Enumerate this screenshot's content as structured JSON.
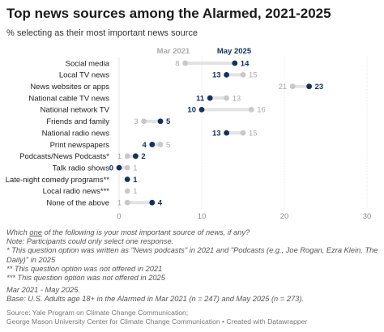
{
  "title": "Top news sources among the Alarmed, 2021-2025",
  "subtitle": "% selecting as their most important news source",
  "legend": {
    "series_a": "Mar 2021",
    "series_b": "May 2025"
  },
  "notes": {
    "question_pre": "Which ",
    "question_u": "one",
    "question_post": " of the following is your most important source of news, if any?",
    "line1": "Note: Participants could only select one response.",
    "line2": "* This question option was written as \"News podcasts\" in 2021 and \"Podcasts (e.g., Joe Rogan, Ezra Klein, The",
    "line3": "Daily)\" in 2025",
    "line4": "** This question option was not offered in 2021",
    "line5": "*** This question option was not offered in 2025"
  },
  "dates": {
    "line1": "Mar 2021 - May 2025.",
    "line2": "Base: U.S. Adults age 18+ in the Alarmed in Mar 2021 (n = 247) and May 2025 (n = 273)."
  },
  "source": {
    "line1": "Source: Yale Program on Climate Change Communication;",
    "line2": "George Mason University Center for Climate Change Communication • Created with Datawrapper"
  },
  "colors": {
    "mar2021": "#c8c8c8",
    "may2025": "#15305a",
    "connector": "#e3e3e3",
    "grid": "#e6e6e6"
  },
  "chart_data": {
    "type": "dot",
    "xlim": [
      0,
      30
    ],
    "xticks": [
      0,
      10,
      20,
      30
    ],
    "categories": [
      "Social media",
      "Local TV news",
      "News websites or apps",
      "National cable TV news",
      "National network TV",
      "Friends and family",
      "National radio news",
      "Print newspapers",
      "Podcasts/News Podcasts*",
      "Talk radio shows",
      "Late-night comedy programs**",
      "Local radio news***",
      "None of the above"
    ],
    "series": [
      {
        "name": "Mar 2021",
        "values": [
          8,
          15,
          21,
          13,
          16,
          3,
          15,
          5,
          1,
          1,
          null,
          1,
          1
        ]
      },
      {
        "name": "May 2025",
        "values": [
          14,
          13,
          23,
          11,
          10,
          5,
          13,
          4,
          2,
          0,
          1,
          null,
          4
        ]
      }
    ]
  }
}
